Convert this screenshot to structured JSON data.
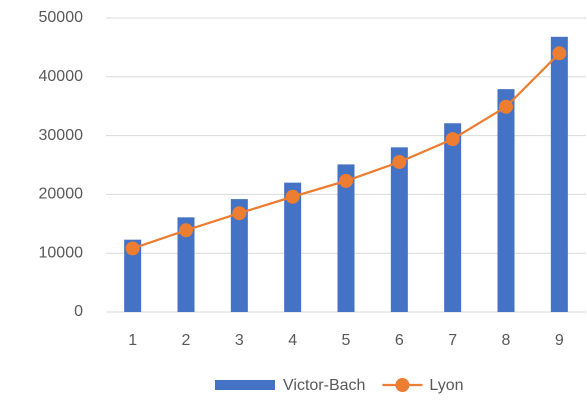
{
  "chart_data": {
    "type": "combo",
    "categories": [
      "1",
      "2",
      "3",
      "4",
      "5",
      "6",
      "7",
      "8",
      "9"
    ],
    "series": [
      {
        "name": "Victor-Bach",
        "type": "bar",
        "color": "#4472c4",
        "values": [
          12300,
          16100,
          19200,
          22000,
          25100,
          28000,
          32100,
          37900,
          46800
        ]
      },
      {
        "name": "Lyon",
        "type": "line",
        "color": "#ed7d31",
        "values": [
          10800,
          13900,
          16800,
          19600,
          22300,
          25500,
          29400,
          34900,
          44000
        ]
      }
    ],
    "ylim": [
      0,
      50000
    ],
    "yticks": [
      0,
      10000,
      20000,
      30000,
      40000,
      50000
    ],
    "grid": true,
    "legend": "bottom"
  }
}
